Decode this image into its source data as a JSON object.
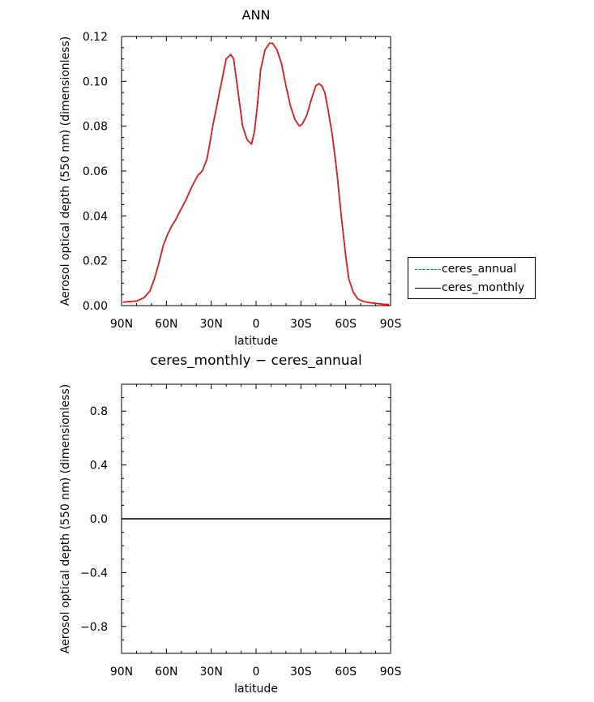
{
  "chart_data": [
    {
      "type": "line",
      "title": "ANN",
      "xlabel": "latitude",
      "ylabel": "Aerosol optical depth (550 nm) (dimensionless)",
      "x_ticks": [
        -90,
        -60,
        -30,
        0,
        30,
        60,
        90
      ],
      "x_tick_labels": [
        "90N",
        "60N",
        "30N",
        "0",
        "30S",
        "60S",
        "90S"
      ],
      "xlim": [
        -90,
        90
      ],
      "ylim": [
        0,
        0.12
      ],
      "y_ticks": [
        0,
        0.02,
        0.04,
        0.06,
        0.08,
        0.1,
        0.12
      ],
      "y_tick_labels": [
        "0.00",
        "0.02",
        "0.04",
        "0.06",
        "0.08",
        "0.10",
        "0.12"
      ],
      "legend_position": "right",
      "series": [
        {
          "name": "ceres_annual",
          "color": "#e41a1c",
          "style": "dashed",
          "x": [
            -89,
            -85,
            -80,
            -75,
            -71,
            -68,
            -65,
            -62,
            -59,
            -56,
            -54,
            -51,
            -47,
            -43,
            -39,
            -36,
            -33,
            -31,
            -29,
            -26,
            -23,
            -20,
            -17,
            -15,
            -13,
            -11,
            -9,
            -6,
            -3,
            -1,
            1,
            3,
            6,
            9,
            11,
            12,
            14,
            17,
            20,
            23,
            26,
            29,
            31,
            34,
            37,
            40,
            42,
            44,
            46,
            48,
            51,
            54,
            57,
            60,
            62,
            65,
            68,
            72,
            76,
            80,
            85,
            89
          ],
          "values": [
            0.0015,
            0.0018,
            0.002,
            0.0035,
            0.0065,
            0.012,
            0.019,
            0.027,
            0.032,
            0.036,
            0.038,
            0.042,
            0.047,
            0.053,
            0.058,
            0.06,
            0.065,
            0.072,
            0.08,
            0.09,
            0.1,
            0.11,
            0.112,
            0.11,
            0.1,
            0.09,
            0.08,
            0.074,
            0.072,
            0.078,
            0.09,
            0.105,
            0.114,
            0.117,
            0.117,
            0.116,
            0.114,
            0.108,
            0.098,
            0.089,
            0.083,
            0.08,
            0.081,
            0.085,
            0.092,
            0.098,
            0.099,
            0.098,
            0.095,
            0.088,
            0.076,
            0.06,
            0.04,
            0.022,
            0.012,
            0.006,
            0.003,
            0.0018,
            0.0013,
            0.001,
            0.0006,
            0.0005
          ]
        },
        {
          "name": "ceres_monthly",
          "color": "#000000",
          "style": "solid",
          "x": [
            -89,
            -85,
            -80,
            -75,
            -71,
            -68,
            -65,
            -62,
            -59,
            -56,
            -54,
            -51,
            -47,
            -43,
            -39,
            -36,
            -33,
            -31,
            -29,
            -26,
            -23,
            -20,
            -17,
            -15,
            -13,
            -11,
            -9,
            -6,
            -3,
            -1,
            1,
            3,
            6,
            9,
            11,
            12,
            14,
            17,
            20,
            23,
            26,
            29,
            31,
            34,
            37,
            40,
            42,
            44,
            46,
            48,
            51,
            54,
            57,
            60,
            62,
            65,
            68,
            72,
            76,
            80,
            85,
            89
          ],
          "values": [
            0.0015,
            0.0018,
            0.002,
            0.0035,
            0.0065,
            0.012,
            0.019,
            0.027,
            0.032,
            0.036,
            0.038,
            0.042,
            0.047,
            0.053,
            0.058,
            0.06,
            0.065,
            0.072,
            0.08,
            0.09,
            0.1,
            0.11,
            0.112,
            0.11,
            0.1,
            0.09,
            0.08,
            0.074,
            0.072,
            0.078,
            0.09,
            0.105,
            0.114,
            0.117,
            0.117,
            0.116,
            0.114,
            0.108,
            0.098,
            0.089,
            0.083,
            0.08,
            0.081,
            0.085,
            0.092,
            0.098,
            0.099,
            0.098,
            0.095,
            0.088,
            0.076,
            0.06,
            0.04,
            0.022,
            0.012,
            0.006,
            0.003,
            0.0018,
            0.0013,
            0.001,
            0.0006,
            0.0005
          ]
        }
      ]
    },
    {
      "type": "line",
      "title": "ceres_monthly − ceres_annual",
      "xlabel": "latitude",
      "ylabel": "Aerosol optical depth (550 nm) (dimensionless)",
      "x_ticks": [
        -90,
        -60,
        -30,
        0,
        30,
        60,
        90
      ],
      "x_tick_labels": [
        "90N",
        "60N",
        "30N",
        "0",
        "30S",
        "60S",
        "90S"
      ],
      "xlim": [
        -90,
        90
      ],
      "ylim": [
        -1,
        1
      ],
      "y_ticks": [
        -0.8,
        -0.4,
        0.0,
        0.4,
        0.8
      ],
      "y_tick_labels": [
        "−0.8",
        "−0.4",
        "0.0",
        "0.4",
        "0.8"
      ],
      "series": [
        {
          "color": "#000000",
          "style": "solid",
          "x": [
            -90,
            90
          ],
          "values": [
            0,
            0
          ]
        }
      ]
    }
  ],
  "legend": {
    "items": [
      {
        "label": "ceres_annual",
        "color": "#e41a1c",
        "style": "dashed"
      },
      {
        "label": "ceres_monthly",
        "color": "#000000",
        "style": "solid"
      }
    ]
  }
}
